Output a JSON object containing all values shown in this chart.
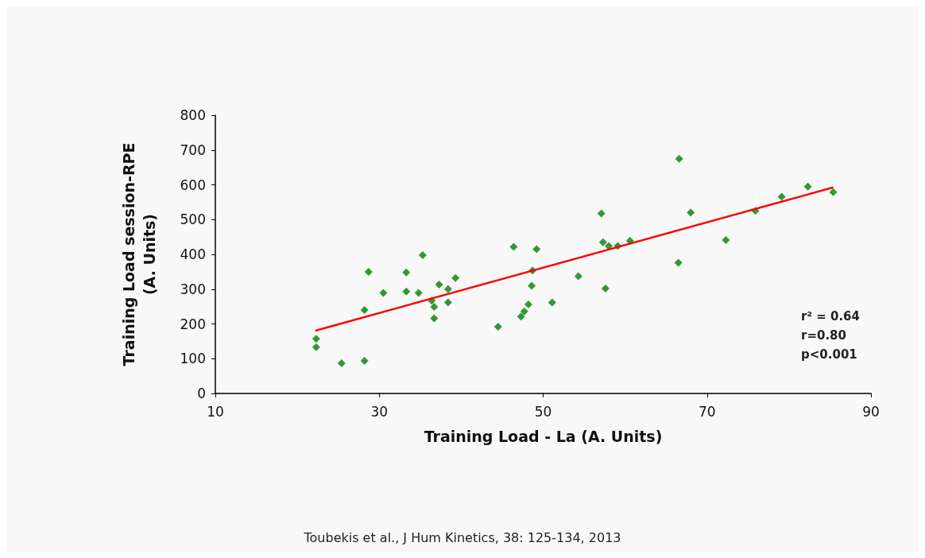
{
  "chart_data": {
    "type": "scatter",
    "xlabel": "Training Load - La (A. Units)",
    "ylabel": "Training Load session-RPE\n(A. Units)",
    "xlim": [
      10,
      90
    ],
    "xticks": [
      10,
      30,
      50,
      70,
      90
    ],
    "ylim": [
      0,
      800
    ],
    "yticks": [
      0,
      100,
      200,
      300,
      400,
      500,
      600,
      700,
      800
    ],
    "grid": false,
    "marker": "diamond",
    "series": [
      {
        "color": "#007f00",
        "x": [
          22.3,
          22.3,
          25.4,
          28.2,
          28.2,
          28.7,
          30.5,
          33.3,
          33.3,
          34.8,
          35.3,
          36.4,
          36.7,
          36.7,
          37.3,
          38.4,
          38.4,
          39.3,
          44.5,
          46.4,
          49.2,
          48.7,
          48.6,
          48.2,
          47.7,
          47.3,
          51.1,
          54.3,
          57.1,
          57.3,
          58.0,
          59.1,
          60.6,
          57.6,
          66.6,
          68.0,
          66.5,
          72.3,
          75.9,
          79.1,
          82.3,
          85.4
        ],
        "values": [
          157,
          133,
          87,
          94,
          240,
          350,
          289,
          348,
          293,
          289,
          398,
          267,
          249,
          216,
          313,
          300,
          262,
          332,
          192,
          422,
          415,
          354,
          310,
          256,
          236,
          221,
          262,
          337,
          518,
          435,
          424,
          424,
          439,
          302,
          675,
          520,
          376,
          441,
          525,
          566,
          595,
          579
        ]
      },
      {
        "type": "line",
        "color": "#ff0000",
        "marker": "none",
        "x": [
          22.3,
          85.3
        ],
        "values": [
          181,
          592
        ]
      }
    ],
    "annotations": [
      "r² = 0.64",
      "r=0.80",
      "p<0.001",
      "Toubekis et al., J Hum Kinetics, 38: 125-134, 2013"
    ]
  }
}
